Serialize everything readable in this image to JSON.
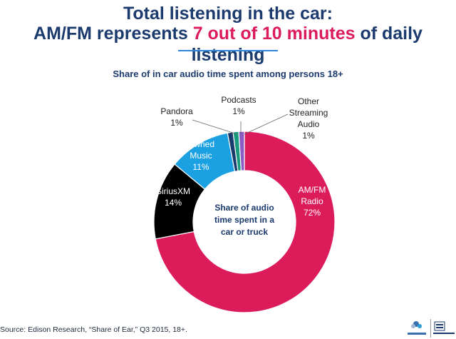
{
  "header": {
    "title_line1": "Total listening in the car:",
    "title_line2_prefix": "AM/FM represents ",
    "title_line2_accent": "7 out of 10 minutes",
    "title_line2_suffix": " of daily listening"
  },
  "colors": {
    "title": "#1b3a6e",
    "accent": "#dc1b5a",
    "rule": "#2e86d9"
  },
  "chart_data": {
    "type": "pie",
    "donut": true,
    "title": "Share of in car audio time spent among persons 18+",
    "center_label": [
      "Share of audio",
      "time spent in a",
      "car or truck"
    ],
    "slices": [
      {
        "name": "AM/FM Radio",
        "label_lines": [
          "AM/FM",
          "Radio"
        ],
        "value": 72,
        "value_label": "72%",
        "color": "#dc1b5a",
        "label_color": "#ffffff",
        "label_outside": false
      },
      {
        "name": "SiriusXM",
        "label_lines": [
          "SiriusXM"
        ],
        "value": 14,
        "value_label": "14%",
        "color": "#000000",
        "label_color": "#ffffff",
        "label_outside": false
      },
      {
        "name": "Owned Music",
        "label_lines": [
          "Owned",
          "Music"
        ],
        "value": 11,
        "value_label": "11%",
        "color": "#1ba1e2",
        "label_color": "#ffffff",
        "label_outside": false
      },
      {
        "name": "Pandora",
        "label_lines": [
          "Pandora"
        ],
        "value": 1,
        "value_label": "1%",
        "color": "#1b3a6e",
        "label_color": "#222222",
        "label_outside": true
      },
      {
        "name": "Podcasts",
        "label_lines": [
          "Podcasts"
        ],
        "value": 1,
        "value_label": "1%",
        "color": "#1a9a7c",
        "label_color": "#222222",
        "label_outside": true
      },
      {
        "name": "Other Streaming Audio",
        "label_lines": [
          "Other",
          "Streaming",
          "Audio"
        ],
        "value": 1,
        "value_label": "1%",
        "color": "#8a5cc4",
        "label_color": "#222222",
        "label_outside": true
      }
    ],
    "legend": "none"
  },
  "footer": {
    "source": "Source: Edison Research, “Share of Ear,” Q3 2015, 18+."
  }
}
